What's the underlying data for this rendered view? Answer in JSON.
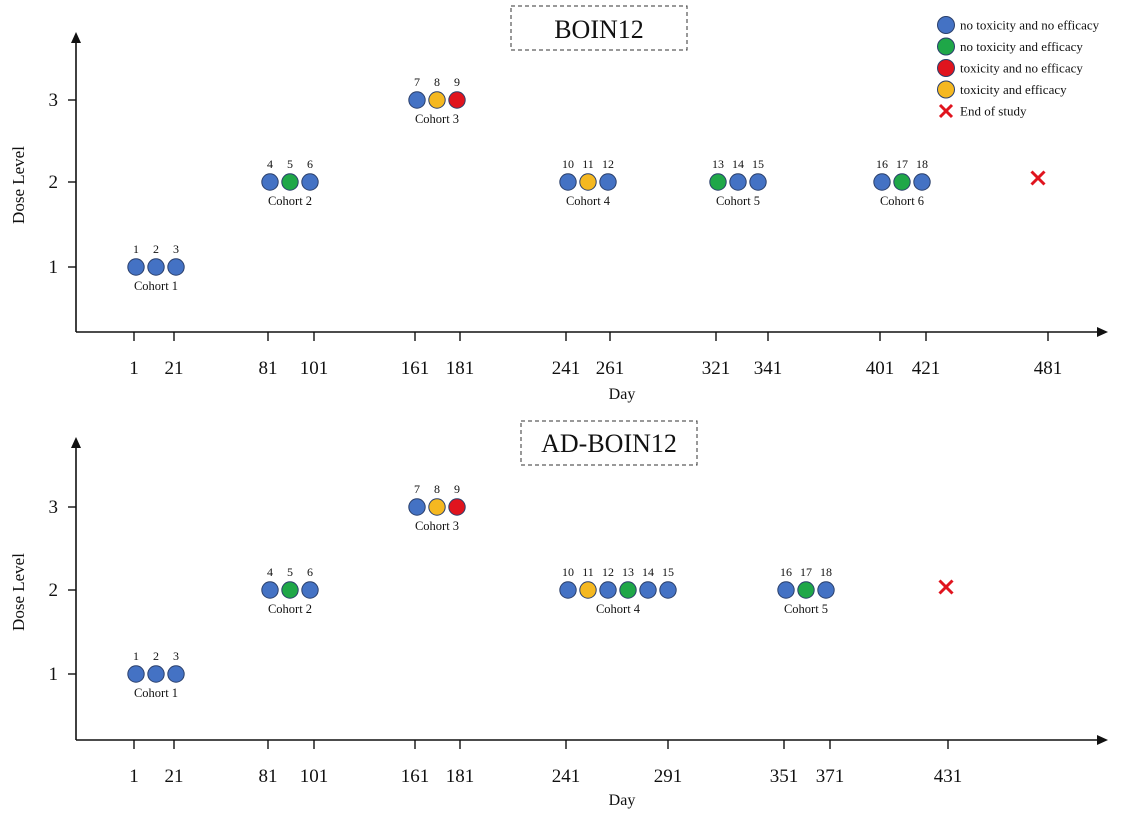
{
  "colors": {
    "no toxicity and no efficacy": "#4472C4",
    "no toxicity and efficacy": "#1FA748",
    "toxicity and no efficacy": "#E0141E",
    "toxicity and efficacy": "#F5B820",
    "end": "#E0141E"
  },
  "legend": {
    "placement": "top-right",
    "items": [
      {
        "label": "no toxicity and no efficacy",
        "marker": "circle",
        "color": "#4472C4"
      },
      {
        "label": "no toxicity and efficacy",
        "marker": "circle",
        "color": "#1FA748"
      },
      {
        "label": "toxicity and no efficacy",
        "marker": "circle",
        "color": "#E0141E"
      },
      {
        "label": "toxicity and efficacy",
        "marker": "circle",
        "color": "#F5B820"
      },
      {
        "label": "End of study",
        "marker": "cross",
        "color": "#E0141E"
      }
    ]
  },
  "chart_data": [
    {
      "type": "scatter",
      "title": "BOIN12",
      "xlabel": "Day",
      "ylabel": "Dose Level",
      "xticks": [
        1,
        21,
        81,
        101,
        161,
        181,
        241,
        261,
        321,
        341,
        401,
        421,
        481
      ],
      "yticks": [
        1,
        2,
        3
      ],
      "grid": false,
      "end_of_study": {
        "day": 481,
        "dose": 2
      },
      "cohorts": [
        {
          "label": "Cohort 1",
          "dose": 1,
          "start_day": 1,
          "end_day": 21,
          "patients": [
            {
              "id": "1",
              "outcome": "no toxicity and no efficacy"
            },
            {
              "id": "2",
              "outcome": "no toxicity and no efficacy"
            },
            {
              "id": "3",
              "outcome": "no toxicity and no efficacy"
            }
          ]
        },
        {
          "label": "Cohort 2",
          "dose": 2,
          "start_day": 81,
          "end_day": 101,
          "patients": [
            {
              "id": "4",
              "outcome": "no toxicity and no efficacy"
            },
            {
              "id": "5",
              "outcome": "no toxicity and efficacy"
            },
            {
              "id": "6",
              "outcome": "no toxicity and no efficacy"
            }
          ]
        },
        {
          "label": "Cohort 3",
          "dose": 3,
          "start_day": 161,
          "end_day": 181,
          "patients": [
            {
              "id": "7",
              "outcome": "no toxicity and no efficacy"
            },
            {
              "id": "8",
              "outcome": "toxicity and efficacy"
            },
            {
              "id": "9",
              "outcome": "toxicity and no efficacy"
            }
          ]
        },
        {
          "label": "Cohort 4",
          "dose": 2,
          "start_day": 241,
          "end_day": 261,
          "patients": [
            {
              "id": "10",
              "outcome": "no toxicity and no efficacy"
            },
            {
              "id": "11",
              "outcome": "toxicity and efficacy"
            },
            {
              "id": "12",
              "outcome": "no toxicity and no efficacy"
            }
          ]
        },
        {
          "label": "Cohort 5",
          "dose": 2,
          "start_day": 321,
          "end_day": 341,
          "patients": [
            {
              "id": "13",
              "outcome": "no toxicity and efficacy"
            },
            {
              "id": "14",
              "outcome": "no toxicity and no efficacy"
            },
            {
              "id": "15",
              "outcome": "no toxicity and no efficacy"
            }
          ]
        },
        {
          "label": "Cohort 6",
          "dose": 2,
          "start_day": 401,
          "end_day": 421,
          "patients": [
            {
              "id": "16",
              "outcome": "no toxicity and no efficacy"
            },
            {
              "id": "17",
              "outcome": "no toxicity and efficacy"
            },
            {
              "id": "18",
              "outcome": "no toxicity and no efficacy"
            }
          ]
        }
      ]
    },
    {
      "type": "scatter",
      "title": "AD-BOIN12",
      "xlabel": "Day",
      "ylabel": "Dose Level",
      "xticks": [
        1,
        21,
        81,
        101,
        161,
        181,
        241,
        291,
        351,
        371,
        431
      ],
      "yticks": [
        1,
        2,
        3
      ],
      "grid": false,
      "end_of_study": {
        "day": 431,
        "dose": 2
      },
      "cohorts": [
        {
          "label": "Cohort 1",
          "dose": 1,
          "start_day": 1,
          "end_day": 21,
          "patients": [
            {
              "id": "1",
              "outcome": "no toxicity and no efficacy"
            },
            {
              "id": "2",
              "outcome": "no toxicity and no efficacy"
            },
            {
              "id": "3",
              "outcome": "no toxicity and no efficacy"
            }
          ]
        },
        {
          "label": "Cohort 2",
          "dose": 2,
          "start_day": 81,
          "end_day": 101,
          "patients": [
            {
              "id": "4",
              "outcome": "no toxicity and no efficacy"
            },
            {
              "id": "5",
              "outcome": "no toxicity and efficacy"
            },
            {
              "id": "6",
              "outcome": "no toxicity and no efficacy"
            }
          ]
        },
        {
          "label": "Cohort 3",
          "dose": 3,
          "start_day": 161,
          "end_day": 181,
          "patients": [
            {
              "id": "7",
              "outcome": "no toxicity and no efficacy"
            },
            {
              "id": "8",
              "outcome": "toxicity and efficacy"
            },
            {
              "id": "9",
              "outcome": "toxicity and no efficacy"
            }
          ]
        },
        {
          "label": "Cohort 4",
          "dose": 2,
          "start_day": 241,
          "end_day": 291,
          "patients": [
            {
              "id": "10",
              "outcome": "no toxicity and no efficacy"
            },
            {
              "id": "11",
              "outcome": "toxicity and efficacy"
            },
            {
              "id": "12",
              "outcome": "no toxicity and no efficacy"
            },
            {
              "id": "13",
              "outcome": "no toxicity and efficacy"
            },
            {
              "id": "14",
              "outcome": "no toxicity and no efficacy"
            },
            {
              "id": "15",
              "outcome": "no toxicity and no efficacy"
            }
          ]
        },
        {
          "label": "Cohort 5",
          "dose": 2,
          "start_day": 351,
          "end_day": 371,
          "patients": [
            {
              "id": "16",
              "outcome": "no toxicity and no efficacy"
            },
            {
              "id": "17",
              "outcome": "no toxicity and efficacy"
            },
            {
              "id": "18",
              "outcome": "no toxicity and no efficacy"
            }
          ]
        }
      ]
    }
  ]
}
